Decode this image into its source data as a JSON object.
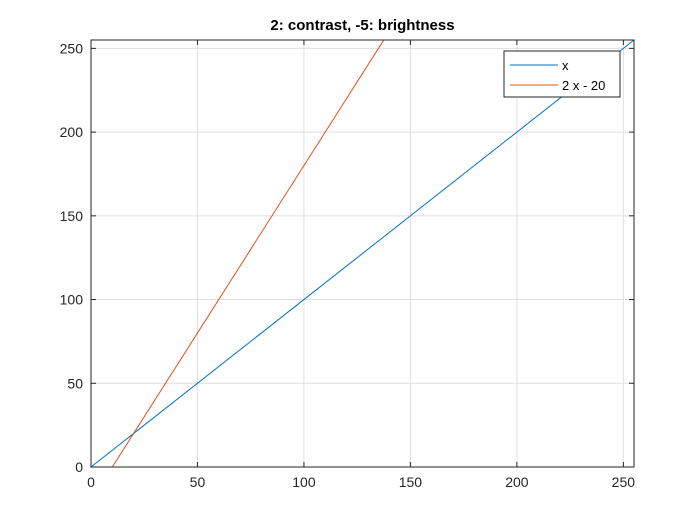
{
  "chart_data": {
    "type": "line",
    "title": "2: contrast, -5: brightness",
    "xlabel": "",
    "ylabel": "",
    "xlim": [
      0,
      255
    ],
    "ylim": [
      0,
      255
    ],
    "xticks": [
      0,
      50,
      100,
      150,
      200,
      250
    ],
    "yticks": [
      0,
      50,
      100,
      150,
      200,
      250
    ],
    "grid": true,
    "legend_position": "top-right",
    "series": [
      {
        "name": "x",
        "color": "#0072BD",
        "x": [
          0,
          255
        ],
        "y": [
          0,
          255
        ]
      },
      {
        "name": "2 x - 20",
        "color": "#D95319",
        "x": [
          10,
          137.5
        ],
        "y": [
          0,
          255
        ]
      }
    ]
  }
}
